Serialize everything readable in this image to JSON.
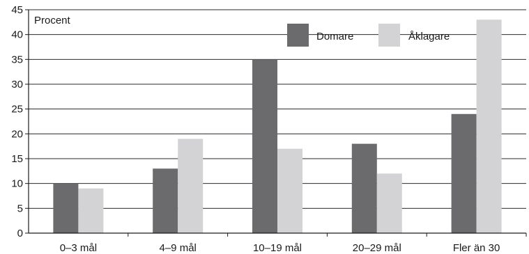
{
  "chart_data": {
    "type": "bar",
    "categories": [
      "0–3 mål",
      "4–9 mål",
      "10–19 mål",
      "20–29 mål",
      "Fler än 30"
    ],
    "series": [
      {
        "name": "Domare",
        "values": [
          10,
          13,
          35,
          18,
          24
        ],
        "color": "#6b6b6d"
      },
      {
        "name": "Åklagare",
        "values": [
          9,
          19,
          17,
          12,
          43
        ],
        "color": "#d3d3d5"
      }
    ],
    "ylabel": "Procent",
    "ylim": [
      0,
      45
    ],
    "yticks": [
      0,
      5,
      10,
      15,
      20,
      25,
      30,
      35,
      40,
      45
    ],
    "grid": true,
    "legend_position": "top-right"
  }
}
